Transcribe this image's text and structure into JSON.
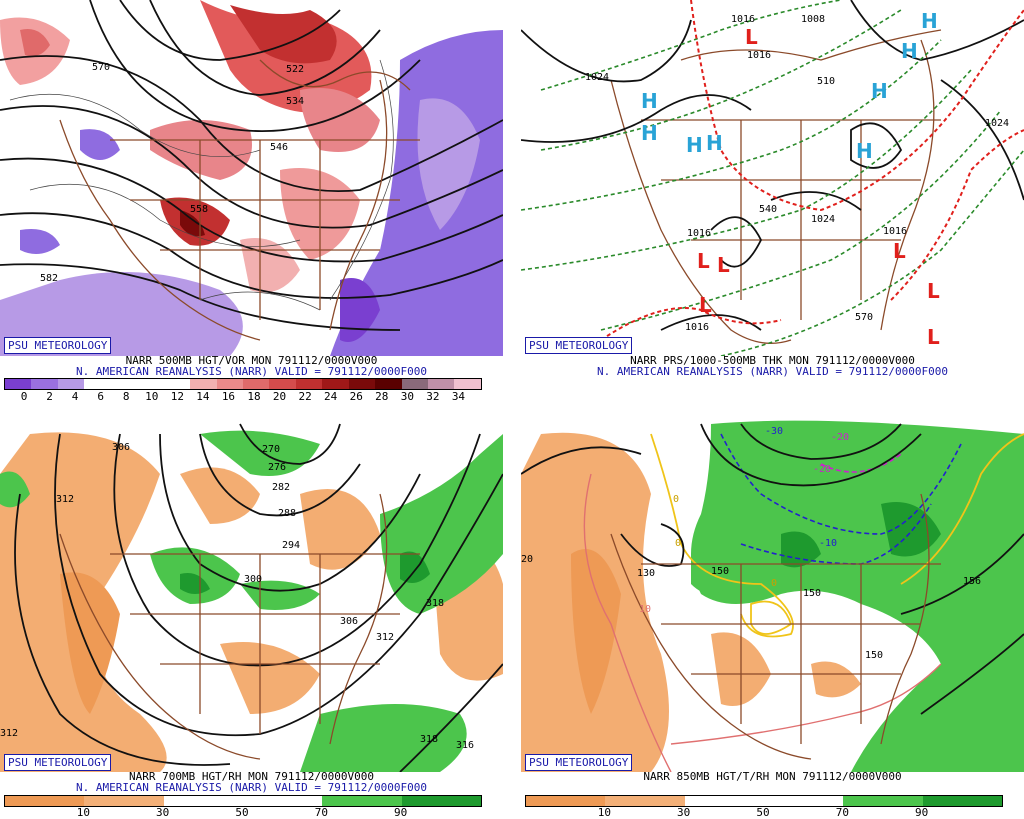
{
  "panels": [
    {
      "id": "tl",
      "brand": "PSU METEOROLOGY",
      "caption_line1": "NARR 500MB HGT/VOR MON 791112/0000V000",
      "caption_line2": "N. AMERICAN REANALYSIS (NARR) VALID = 791112/0000F000",
      "scale_ticks": [
        "0",
        "2",
        "4",
        "6",
        "8",
        "10",
        "12",
        "14",
        "16",
        "18",
        "20",
        "22",
        "24",
        "26",
        "28",
        "30",
        "32",
        "34"
      ],
      "map_labels": [
        "570",
        "522",
        "534",
        "582",
        "546",
        "558"
      ]
    },
    {
      "id": "tr",
      "brand": "PSU METEOROLOGY",
      "caption_line1": "NARR PRS/1000-500MB THK MON 791112/0000V000",
      "caption_line2": "N. AMERICAN REANALYSIS (NARR) VALID = 791112/0000F000",
      "map_labels": [
        "1008",
        "1016",
        "1024",
        "1024",
        "1016",
        "1016",
        "1016",
        "510",
        "540",
        "570",
        "1024",
        "1016"
      ]
    },
    {
      "id": "bl",
      "brand": "PSU METEOROLOGY",
      "caption_line1": "NARR 700MB HGT/RH MON 791112/0000V000",
      "caption_line2": "N. AMERICAN REANALYSIS (NARR) VALID = 791112/0000F000",
      "scale_ticks": [
        "10",
        "30",
        "50",
        "70",
        "90"
      ],
      "map_labels": [
        "306",
        "312",
        "270",
        "276",
        "282",
        "288",
        "294",
        "300",
        "306",
        "312",
        "318",
        "318",
        "316",
        "312"
      ]
    },
    {
      "id": "br",
      "brand": "PSU METEOROLOGY",
      "caption_line1": "NARR 850MB HGT/T/RH MON 791112/0000V000",
      "scale_ticks": [
        "10",
        "30",
        "50",
        "70",
        "90"
      ],
      "map_labels": [
        "-30",
        "-20",
        "-20",
        "-10",
        "130",
        "150",
        "150",
        "150",
        "156",
        "10",
        "0",
        "0",
        "0",
        "20"
      ]
    }
  ],
  "colors": {
    "vor_scale": [
      "#7a3fd0",
      "#9a70e0",
      "#b79ae6",
      "#ffffff",
      "#ffffff",
      "#ffffff",
      "#ffffff",
      "#f2b0b0",
      "#ea8a8a",
      "#e06a6a",
      "#d44c4c",
      "#c03030",
      "#a01818",
      "#7a0a0a",
      "#5a0000",
      "#8a6a7a",
      "#c090a8",
      "#f0c0d0"
    ],
    "rh_scale": [
      "#ee9a55",
      "#f3b078",
      "#ffffff",
      "#ffffff",
      "#4cc54c",
      "#1e9a2e"
    ],
    "highs": "#29a3d6",
    "lows": "#e0201c",
    "thickness": "#2a8a2a"
  }
}
